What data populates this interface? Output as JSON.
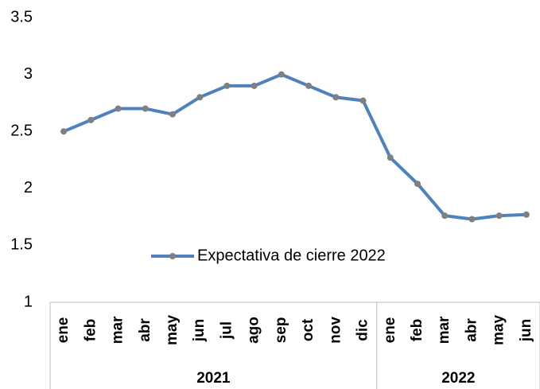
{
  "chart_data": {
    "type": "line",
    "groups": [
      {
        "label": "2021",
        "categories": [
          "ene",
          "feb",
          "mar",
          "abr",
          "may",
          "jun",
          "jul",
          "ago",
          "sep",
          "oct",
          "nov",
          "dic"
        ]
      },
      {
        "label": "2022",
        "categories": [
          "ene",
          "feb",
          "mar",
          "abr",
          "may",
          "jun"
        ]
      }
    ],
    "series": [
      {
        "name": "Expectativa de cierre 2022",
        "color": "#4f81bd",
        "marker_color": "#808080",
        "values": [
          2.5,
          2.6,
          2.7,
          2.7,
          2.65,
          2.8,
          2.9,
          2.9,
          3.0,
          2.9,
          2.8,
          2.77,
          2.27,
          2.04,
          1.76,
          1.73,
          1.76,
          1.77
        ]
      }
    ],
    "ylim": [
      1,
      3.5
    ],
    "yticks": [
      1,
      1.5,
      2,
      2.5,
      3,
      3.5
    ],
    "grid": false,
    "legend": "center"
  }
}
